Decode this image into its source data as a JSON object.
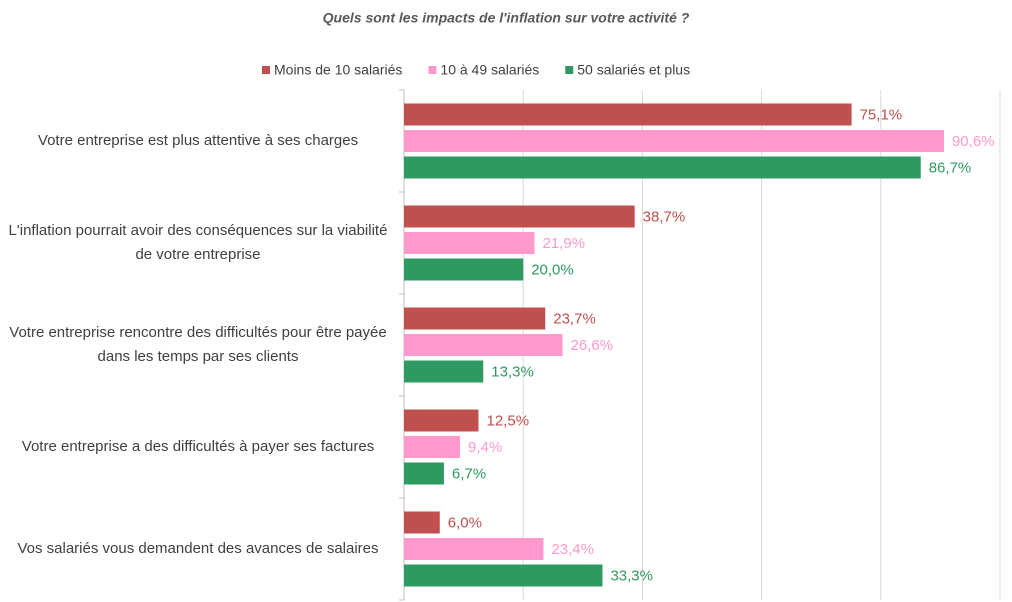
{
  "chart_data": {
    "type": "bar",
    "orientation": "horizontal",
    "title": "Quels sont les impacts de l'inflation sur votre activité ?",
    "categories": [
      "Votre entreprise est plus attentive à ses charges",
      "L'inflation pourrait avoir des conséquences sur la viabilité de votre entreprise",
      "Votre entreprise rencontre des difficultés pour être payée dans les temps par ses clients",
      "Votre entreprise a des difficultés à payer ses factures",
      "Vos salariés vous demandent des avances de salaires"
    ],
    "series": [
      {
        "name": "Moins de 10 salariés",
        "color": "#c0504d",
        "values": [
          75.1,
          38.7,
          23.7,
          12.5,
          6.0
        ],
        "value_labels": [
          "75,1%",
          "38,7%",
          "23,7%",
          "12,5%",
          "6,0%"
        ]
      },
      {
        "name": "10 à 49 salariés",
        "color": "#ff99cc",
        "values": [
          90.6,
          21.9,
          26.6,
          9.4,
          23.4
        ],
        "value_labels": [
          "90,6%",
          "21,9%",
          "26,6%",
          "9,4%",
          "23,4%"
        ]
      },
      {
        "name": "50 salariés et plus",
        "color": "#2e9960",
        "values": [
          86.7,
          20.0,
          13.3,
          6.7,
          33.3
        ],
        "value_labels": [
          "86,7%",
          "20,0%",
          "13,3%",
          "6,7%",
          "33,3%"
        ]
      }
    ],
    "xlim": [
      0,
      100
    ],
    "xticks": [
      0,
      20,
      40,
      60,
      80,
      100
    ],
    "grid": true,
    "legend": "top"
  }
}
